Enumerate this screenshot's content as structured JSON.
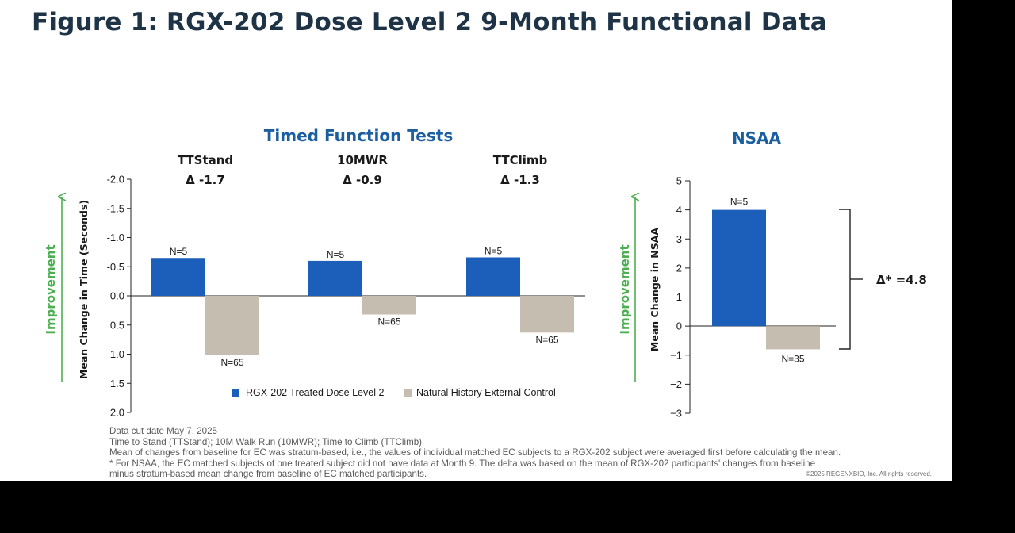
{
  "figure_title": "Figure 1: RGX-202 Dose Level 2 9-Month Functional Data",
  "colors": {
    "treated": "#1c5fbb",
    "control": "#c4bdb0",
    "heading_blue": "#1c5fa0",
    "improvement_green": "#4caf50"
  },
  "footnotes": {
    "data_cut": "Data cut date May 7, 2025",
    "abbreviations": "Time to Stand (TTStand); 10M Walk Run (10MWR); Time to Climb (TTClimb)",
    "method": "Mean of changes from baseline for EC was stratum-based, i.e., the values of individual matched EC subjects to a RGX-202 subject were averaged first before calculating the mean.",
    "nsaa_note_line1": "* For NSAA, the EC matched subjects of one treated subject did not have data at Month 9. The delta was based on the mean of RGX-202 participants' changes from baseline",
    "nsaa_note_line2": "minus stratum-based mean change from baseline of EC matched participants.",
    "copyright": "©2025 REGENXBIO, Inc. All rights reserved."
  },
  "chart_data": [
    {
      "type": "bar",
      "title": "Timed Function Tests",
      "ylabel": "Mean Change in Time (Seconds)",
      "improvement_label": "Improvement",
      "y_axis_reversed": true,
      "ylim": [
        -2.0,
        2.0
      ],
      "yticks": [
        "-2.0",
        "-1.5",
        "-1.0",
        "-0.5",
        "0.0",
        "0.5",
        "1.0",
        "1.5",
        "2.0"
      ],
      "categories": [
        "TTStand",
        "10MWR",
        "TTClimb"
      ],
      "deltas": [
        "Δ -1.7",
        "Δ -0.9",
        "Δ -1.3"
      ],
      "series": [
        {
          "name": "RGX-202 Treated Dose Level 2",
          "values": [
            -0.65,
            -0.6,
            -0.66
          ],
          "n_labels": [
            "N=5",
            "N=5",
            "N=5"
          ]
        },
        {
          "name": "Natural History External Control",
          "values": [
            1.02,
            0.32,
            0.63
          ],
          "n_labels": [
            "N=65",
            "N=65",
            "N=65"
          ]
        }
      ],
      "legend_position": "bottom"
    },
    {
      "type": "bar",
      "title": "NSAA",
      "ylabel": "Mean Change in NSAA",
      "improvement_label": "Improvement",
      "ylim": [
        -3,
        5
      ],
      "yticks": [
        "5",
        "4",
        "3",
        "2",
        "1",
        "0",
        "−1",
        "−2",
        "−3"
      ],
      "series": [
        {
          "name": "RGX-202 Treated Dose Level 2",
          "values": [
            4.0
          ],
          "n_labels": [
            "N=5"
          ]
        },
        {
          "name": "Natural History External Control",
          "values": [
            -0.8
          ],
          "n_labels": [
            "N=35"
          ]
        }
      ],
      "delta_label": "Δ* =4.8"
    }
  ]
}
